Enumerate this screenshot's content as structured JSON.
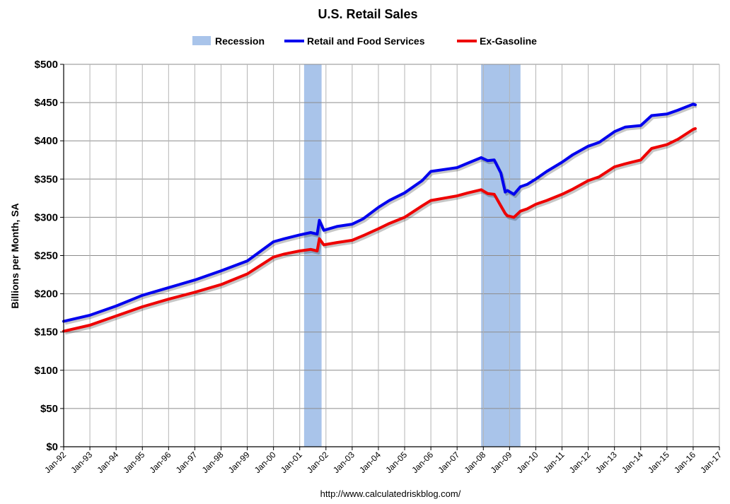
{
  "chart_data": {
    "type": "line",
    "title": "U.S. Retail Sales",
    "ylabel": "Billions per Month, SA",
    "xlabel": "",
    "source": "http://www.calculatedriskblog.com/",
    "ylim": [
      0,
      500
    ],
    "xlim": [
      "1992-01",
      "2017-01"
    ],
    "grid": true,
    "legend_position": "top",
    "y_ticks": [
      {
        "value": 0,
        "label": "$0"
      },
      {
        "value": 50,
        "label": "$50"
      },
      {
        "value": 100,
        "label": "$100"
      },
      {
        "value": 150,
        "label": "$150"
      },
      {
        "value": 200,
        "label": "$200"
      },
      {
        "value": 250,
        "label": "$250"
      },
      {
        "value": 300,
        "label": "$300"
      },
      {
        "value": 350,
        "label": "$350"
      },
      {
        "value": 400,
        "label": "$400"
      },
      {
        "value": 450,
        "label": "$450"
      },
      {
        "value": 500,
        "label": "$500"
      }
    ],
    "x_ticks": [
      {
        "value": "1992-01",
        "label": "Jan-92"
      },
      {
        "value": "1993-01",
        "label": "Jan-93"
      },
      {
        "value": "1994-01",
        "label": "Jan-94"
      },
      {
        "value": "1995-01",
        "label": "Jan-95"
      },
      {
        "value": "1996-01",
        "label": "Jan-96"
      },
      {
        "value": "1997-01",
        "label": "Jan-97"
      },
      {
        "value": "1998-01",
        "label": "Jan-98"
      },
      {
        "value": "1999-01",
        "label": "Jan-99"
      },
      {
        "value": "2000-01",
        "label": "Jan-00"
      },
      {
        "value": "2001-01",
        "label": "Jan-01"
      },
      {
        "value": "2002-01",
        "label": "Jan-02"
      },
      {
        "value": "2003-01",
        "label": "Jan-03"
      },
      {
        "value": "2004-01",
        "label": "Jan-04"
      },
      {
        "value": "2005-01",
        "label": "Jan-05"
      },
      {
        "value": "2006-01",
        "label": "Jan-06"
      },
      {
        "value": "2007-01",
        "label": "Jan-07"
      },
      {
        "value": "2008-01",
        "label": "Jan-08"
      },
      {
        "value": "2009-01",
        "label": "Jan-09"
      },
      {
        "value": "2010-01",
        "label": "Jan-10"
      },
      {
        "value": "2011-01",
        "label": "Jan-11"
      },
      {
        "value": "2012-01",
        "label": "Jan-12"
      },
      {
        "value": "2013-01",
        "label": "Jan-13"
      },
      {
        "value": "2014-01",
        "label": "Jan-14"
      },
      {
        "value": "2015-01",
        "label": "Jan-15"
      },
      {
        "value": "2016-01",
        "label": "Jan-16"
      },
      {
        "value": "2017-01",
        "label": "Jan-17"
      }
    ],
    "recessions": [
      {
        "start": "2001-03",
        "end": "2001-11"
      },
      {
        "start": "2007-12",
        "end": "2009-06"
      }
    ],
    "recession_legend": {
      "name": "Recession",
      "color": "#a9c4ea"
    },
    "series": [
      {
        "name": "Retail and Food Services",
        "color": "#0000ee",
        "x": [
          "1992-01",
          "1993-01",
          "1994-01",
          "1995-01",
          "1996-01",
          "1997-01",
          "1998-01",
          "1999-01",
          "2000-01",
          "2000-06",
          "2001-01",
          "2001-06",
          "2001-09",
          "2001-10",
          "2001-12",
          "2002-06",
          "2003-01",
          "2003-06",
          "2004-01",
          "2004-06",
          "2005-01",
          "2005-09",
          "2006-01",
          "2007-01",
          "2007-06",
          "2007-12",
          "2008-03",
          "2008-06",
          "2008-09",
          "2008-11",
          "2008-12",
          "2009-03",
          "2009-06",
          "2009-09",
          "2010-01",
          "2010-06",
          "2011-01",
          "2011-06",
          "2012-01",
          "2012-06",
          "2013-01",
          "2013-06",
          "2014-01",
          "2014-06",
          "2015-01",
          "2015-06",
          "2016-01",
          "2016-02"
        ],
        "values": [
          164,
          172,
          184,
          198,
          208,
          218,
          230,
          243,
          268,
          272,
          277,
          280,
          278,
          296,
          283,
          288,
          291,
          298,
          313,
          322,
          332,
          348,
          360,
          365,
          371,
          378,
          374,
          375,
          358,
          333,
          335,
          330,
          340,
          343,
          350,
          360,
          372,
          382,
          393,
          398,
          412,
          418,
          420,
          433,
          435,
          440,
          448,
          447
        ]
      },
      {
        "name": "Ex-Gasoline",
        "color": "#ee0000",
        "x": [
          "1992-01",
          "1993-01",
          "1994-01",
          "1995-01",
          "1996-01",
          "1997-01",
          "1998-01",
          "1999-01",
          "2000-01",
          "2000-06",
          "2001-01",
          "2001-06",
          "2001-09",
          "2001-10",
          "2001-12",
          "2002-06",
          "2003-01",
          "2003-06",
          "2004-01",
          "2004-06",
          "2005-01",
          "2005-09",
          "2006-01",
          "2007-01",
          "2007-06",
          "2007-12",
          "2008-03",
          "2008-06",
          "2008-09",
          "2008-11",
          "2008-12",
          "2009-03",
          "2009-06",
          "2009-09",
          "2010-01",
          "2010-06",
          "2011-01",
          "2011-06",
          "2012-01",
          "2012-06",
          "2013-01",
          "2013-06",
          "2014-01",
          "2014-06",
          "2015-01",
          "2015-06",
          "2016-01",
          "2016-02"
        ],
        "values": [
          151,
          159,
          171,
          183,
          193,
          202,
          212,
          226,
          248,
          252,
          256,
          258,
          256,
          272,
          264,
          267,
          270,
          276,
          285,
          292,
          300,
          315,
          322,
          328,
          332,
          336,
          331,
          330,
          315,
          305,
          302,
          300,
          308,
          311,
          317,
          322,
          330,
          337,
          348,
          353,
          366,
          370,
          375,
          390,
          395,
          402,
          415,
          416
        ]
      }
    ]
  }
}
